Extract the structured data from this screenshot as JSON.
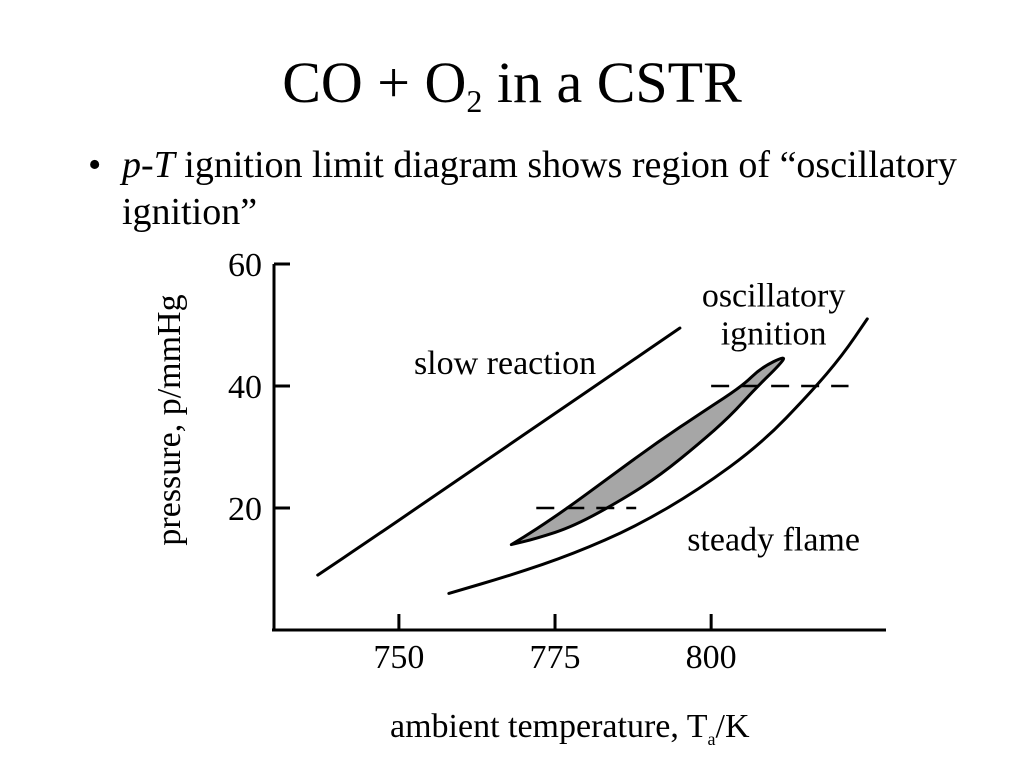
{
  "slide": {
    "title_main": "CO + O",
    "title_sub": "2",
    "title_rest": " in a CSTR",
    "bullet_symbol": "•",
    "bullet_em1": "p",
    "bullet_dash": "-",
    "bullet_em2": "T",
    "bullet_text": " ignition limit diagram shows region of “oscillatory ignition”"
  },
  "chart_data": {
    "type": "line",
    "title": "",
    "xlabel_main": "ambient temperature, T",
    "xlabel_sub": "a",
    "xlabel_unit": "/K",
    "ylabel": "pressure, p/mmHg",
    "xlim": [
      730,
      828
    ],
    "ylim": [
      0,
      60
    ],
    "x_ticks": [
      750,
      775,
      800
    ],
    "y_ticks": [
      20,
      40,
      60
    ],
    "regions": [
      {
        "label_lines": [
          "slow reaction"
        ],
        "x": 767,
        "y": 42
      },
      {
        "label_lines": [
          "oscillatory",
          "ignition"
        ],
        "x": 810,
        "y": 53
      },
      {
        "label_lines": [
          "steady flame"
        ],
        "x": 810,
        "y": 13
      }
    ],
    "series": [
      {
        "role": "upper ignition limit",
        "points": [
          [
            737,
            9
          ],
          [
            745,
            14.5
          ],
          [
            755,
            21.5
          ],
          [
            765,
            28.5
          ],
          [
            775,
            35.5
          ],
          [
            785,
            42.5
          ],
          [
            795,
            49.5
          ]
        ]
      },
      {
        "role": "lower ignition limit",
        "points": [
          [
            758,
            6
          ],
          [
            768,
            9
          ],
          [
            778,
            12.5
          ],
          [
            788,
            17
          ],
          [
            798,
            23
          ],
          [
            808,
            30.5
          ],
          [
            816,
            39
          ],
          [
            821,
            45
          ],
          [
            825,
            51
          ]
        ]
      },
      {
        "role": "oscillatory ignition region",
        "closed": true,
        "points": [
          [
            768,
            14
          ],
          [
            772,
            16.5
          ],
          [
            777,
            20
          ],
          [
            783,
            24.5
          ],
          [
            791,
            30.5
          ],
          [
            799,
            36
          ],
          [
            805,
            40
          ],
          [
            808,
            43
          ],
          [
            812,
            45
          ],
          [
            811,
            43.5
          ],
          [
            807,
            39.5
          ],
          [
            803,
            35
          ],
          [
            798,
            30.5
          ],
          [
            792,
            25.5
          ],
          [
            786,
            21.5
          ],
          [
            778,
            17
          ],
          [
            772,
            15
          ],
          [
            768,
            14
          ]
        ]
      },
      {
        "role": "dashed reference at 40",
        "dashed": true,
        "points": [
          [
            800,
            40
          ],
          [
            822,
            40
          ]
        ]
      },
      {
        "role": "dashed reference at 20",
        "dashed": true,
        "points": [
          [
            772,
            20
          ],
          [
            788,
            20
          ]
        ]
      }
    ]
  }
}
